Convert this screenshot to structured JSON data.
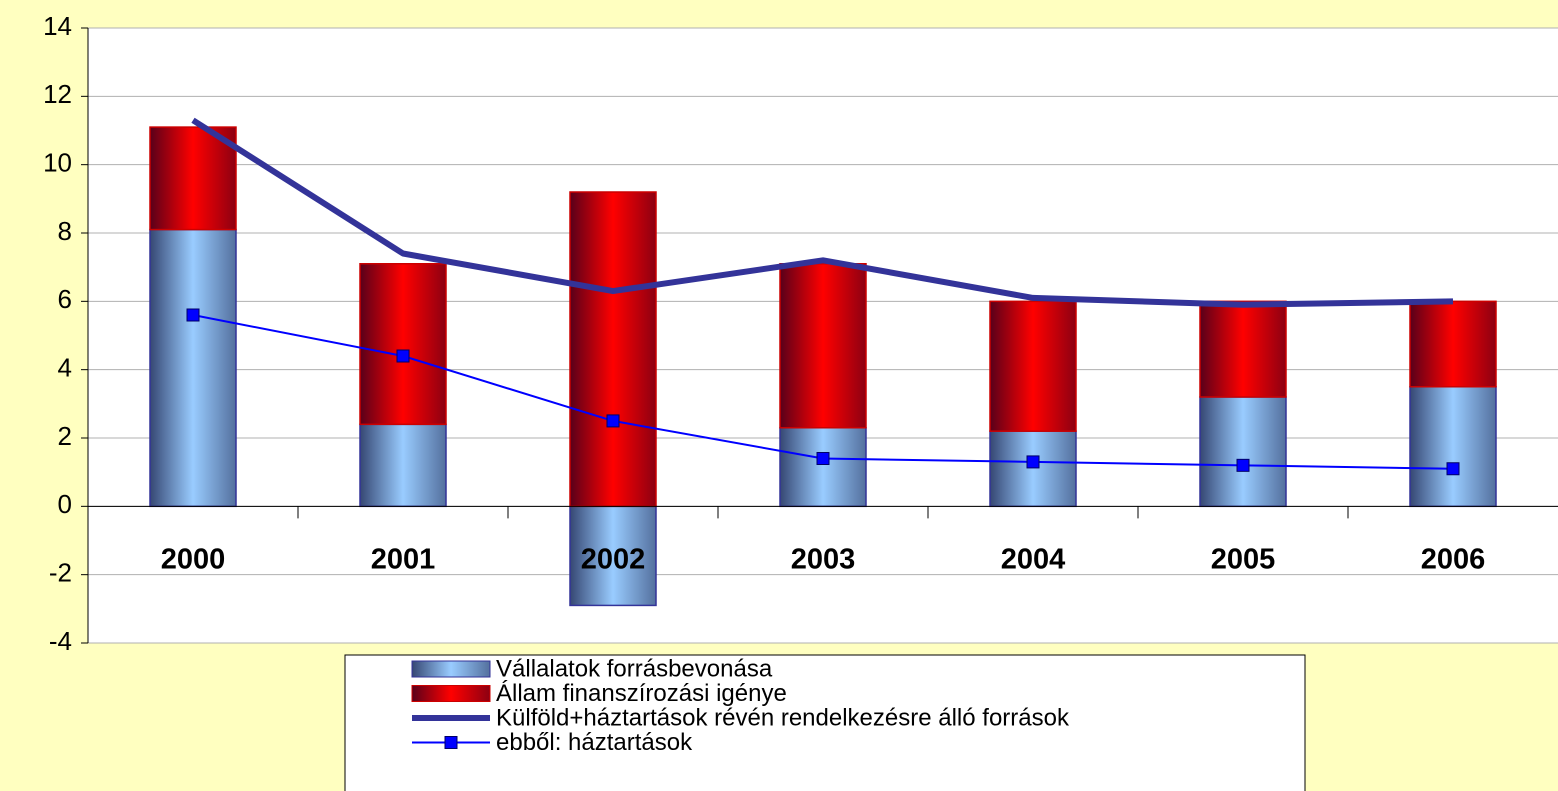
{
  "chart_data": {
    "type": "bar",
    "stacked": true,
    "categories": [
      "2000",
      "2001",
      "2002",
      "2003",
      "2004",
      "2005",
      "2006"
    ],
    "series": [
      {
        "name": "Vállalatok forrásbevonása",
        "type": "bar",
        "color": "#99ccff",
        "values": [
          8.1,
          2.4,
          -2.9,
          2.3,
          2.2,
          3.2,
          3.5
        ]
      },
      {
        "name": "Állam finanszírozási igénye",
        "type": "bar",
        "color": "#ff0000",
        "values": [
          3.0,
          4.7,
          9.2,
          4.8,
          3.8,
          2.8,
          2.5
        ]
      },
      {
        "name": "Külföld+háztartások révén rendelkezésre álló források",
        "type": "line",
        "color": "#333399",
        "line_width": 6,
        "values": [
          11.3,
          7.4,
          6.3,
          7.2,
          6.1,
          5.9,
          6.0
        ]
      },
      {
        "name": "ebből: háztartások",
        "type": "line",
        "color": "#0000ff",
        "line_width": 2,
        "marker": "square",
        "values": [
          5.6,
          4.4,
          2.5,
          1.4,
          1.3,
          1.2,
          1.1
        ]
      }
    ],
    "ylim": [
      -4,
      14
    ],
    "yticks": [
      -4,
      -2,
      0,
      2,
      4,
      6,
      8,
      10,
      12,
      14
    ],
    "grid": true,
    "legend": "bottom"
  }
}
